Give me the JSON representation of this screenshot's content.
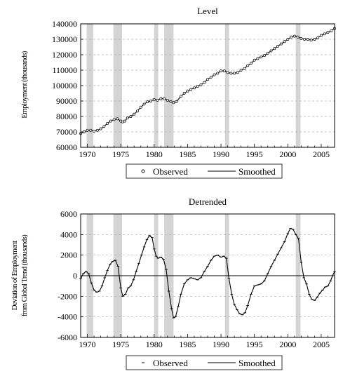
{
  "chart_data": [
    {
      "type": "line",
      "title": "Level",
      "ylabel": "Employment (thousands)",
      "xlim": [
        1969,
        2007
      ],
      "ylim": [
        60000,
        140000
      ],
      "y_ticks": [
        "60000",
        "70000",
        "80000",
        "90000",
        "100000",
        "110000",
        "120000",
        "130000",
        "140000"
      ],
      "x_ticks": [
        "1970",
        "1975",
        "1980",
        "1985",
        "1990",
        "1995",
        "2000",
        "2005"
      ],
      "grid": "horizontal dashed",
      "legend_position": "bottom",
      "recessions": [
        [
          1969.9,
          1970.9
        ],
        [
          1973.9,
          1975.2
        ],
        [
          1980.0,
          1980.6
        ],
        [
          1981.5,
          1982.9
        ],
        [
          1990.6,
          1991.2
        ],
        [
          2001.2,
          2001.9
        ]
      ],
      "series": [
        {
          "name": "Observed",
          "marker": "circle",
          "x": [
            1969.0,
            1969.5,
            1970.0,
            1970.5,
            1971.0,
            1971.5,
            1972.0,
            1972.5,
            1973.0,
            1973.5,
            1974.0,
            1974.5,
            1975.0,
            1975.3,
            1975.6,
            1976.0,
            1976.5,
            1977.0,
            1977.5,
            1978.0,
            1978.5,
            1979.0,
            1979.5,
            1980.0,
            1980.5,
            1981.0,
            1981.5,
            1982.0,
            1982.5,
            1982.9,
            1983.3,
            1984.0,
            1984.5,
            1985.0,
            1985.5,
            1986.0,
            1986.5,
            1987.0,
            1987.5,
            1988.0,
            1988.5,
            1989.0,
            1989.5,
            1990.0,
            1990.5,
            1991.0,
            1991.5,
            1992.0,
            1992.5,
            1993.0,
            1993.5,
            1994.0,
            1994.5,
            1995.0,
            1995.5,
            1996.0,
            1996.5,
            1997.0,
            1997.5,
            1998.0,
            1998.5,
            1999.0,
            1999.5,
            2000.0,
            2000.5,
            2001.0,
            2001.5,
            2002.0,
            2002.5,
            2003.0,
            2003.5,
            2004.0,
            2004.5,
            2005.0,
            2005.5,
            2006.0,
            2006.5,
            2007.0
          ],
          "y": [
            69000,
            70000,
            71000,
            71000,
            70500,
            71000,
            72000,
            73500,
            75500,
            77000,
            78000,
            78500,
            77000,
            76500,
            77000,
            79000,
            80000,
            81500,
            83500,
            86000,
            88000,
            89500,
            90000,
            91000,
            90500,
            91500,
            91500,
            90500,
            89500,
            89000,
            89500,
            93000,
            95000,
            96500,
            97500,
            98500,
            99500,
            100500,
            102000,
            104000,
            105500,
            107000,
            108000,
            109500,
            109500,
            108500,
            108000,
            108000,
            108500,
            110000,
            111000,
            113000,
            114500,
            116500,
            117500,
            118500,
            119500,
            121000,
            122500,
            124000,
            125500,
            127000,
            128500,
            130000,
            131500,
            132000,
            131500,
            130500,
            130000,
            130000,
            129500,
            130000,
            131000,
            132500,
            133500,
            134500,
            135500,
            137000
          ]
        },
        {
          "name": "Smoothed",
          "marker": "none",
          "x": [
            1969.0,
            1969.5,
            1970.0,
            1970.5,
            1971.0,
            1971.5,
            1972.0,
            1972.5,
            1973.0,
            1973.5,
            1974.0,
            1974.5,
            1975.0,
            1975.3,
            1975.6,
            1976.0,
            1976.5,
            1977.0,
            1977.5,
            1978.0,
            1978.5,
            1979.0,
            1979.5,
            1980.0,
            1980.5,
            1981.0,
            1981.5,
            1982.0,
            1982.5,
            1982.9,
            1983.3,
            1984.0,
            1984.5,
            1985.0,
            1985.5,
            1986.0,
            1986.5,
            1987.0,
            1987.5,
            1988.0,
            1988.5,
            1989.0,
            1989.5,
            1990.0,
            1990.5,
            1991.0,
            1991.5,
            1992.0,
            1992.5,
            1993.0,
            1993.5,
            1994.0,
            1994.5,
            1995.0,
            1995.5,
            1996.0,
            1996.5,
            1997.0,
            1997.5,
            1998.0,
            1998.5,
            1999.0,
            1999.5,
            2000.0,
            2000.5,
            2001.0,
            2001.5,
            2002.0,
            2002.5,
            2003.0,
            2003.5,
            2004.0,
            2004.5,
            2005.0,
            2005.5,
            2006.0,
            2006.5,
            2007.0
          ],
          "y": [
            69000,
            70000,
            71000,
            71000,
            70500,
            71000,
            72000,
            73500,
            75500,
            77000,
            78000,
            78500,
            77000,
            76500,
            77000,
            79000,
            80000,
            81500,
            83500,
            86000,
            88000,
            89500,
            90000,
            91000,
            90500,
            91500,
            91500,
            90500,
            89500,
            89000,
            89500,
            93000,
            95000,
            96500,
            97500,
            98500,
            99500,
            100500,
            102000,
            104000,
            105500,
            107000,
            108000,
            109500,
            109500,
            108500,
            108000,
            108000,
            108500,
            110000,
            111000,
            113000,
            114500,
            116500,
            117500,
            118500,
            119500,
            121000,
            122500,
            124000,
            125500,
            127000,
            128500,
            130000,
            131500,
            132000,
            131500,
            130500,
            130000,
            130000,
            129500,
            130000,
            131000,
            132500,
            133500,
            134500,
            135500,
            137000
          ]
        }
      ]
    },
    {
      "type": "line",
      "title": "Detrended",
      "ylabel": "Deviation of Employment from Global Trend (thousands)",
      "xlim": [
        1969,
        2007
      ],
      "ylim": [
        -6000,
        6000
      ],
      "y_ticks": [
        "-6000",
        "-4000",
        "-2000",
        "0",
        "2000",
        "4000",
        "6000"
      ],
      "x_ticks": [
        "1970",
        "1975",
        "1980",
        "1985",
        "1990",
        "1995",
        "2000",
        "2005"
      ],
      "grid": "horizontal dashed",
      "zero_line": true,
      "legend_position": "bottom",
      "recessions": [
        [
          1969.9,
          1970.9
        ],
        [
          1973.9,
          1975.2
        ],
        [
          1980.0,
          1980.6
        ],
        [
          1981.5,
          1982.9
        ],
        [
          1990.6,
          1991.2
        ],
        [
          2001.2,
          2001.9
        ]
      ],
      "series": [
        {
          "name": "Observed",
          "marker": "dash",
          "x": [
            1969.0,
            1969.4,
            1969.8,
            1970.2,
            1970.6,
            1971.0,
            1971.4,
            1971.8,
            1972.2,
            1972.6,
            1973.0,
            1973.4,
            1973.8,
            1974.2,
            1974.6,
            1975.0,
            1975.3,
            1975.7,
            1976.1,
            1976.5,
            1976.9,
            1977.3,
            1977.7,
            1978.1,
            1978.5,
            1978.9,
            1979.3,
            1979.7,
            1980.0,
            1980.3,
            1980.6,
            1981.0,
            1981.4,
            1981.8,
            1982.2,
            1982.6,
            1982.9,
            1983.2,
            1983.6,
            1984.0,
            1984.5,
            1985.0,
            1985.5,
            1986.0,
            1986.5,
            1987.0,
            1987.5,
            1988.0,
            1988.5,
            1989.0,
            1989.5,
            1990.0,
            1990.4,
            1990.8,
            1991.2,
            1991.6,
            1992.0,
            1992.4,
            1992.8,
            1993.2,
            1993.6,
            1994.0,
            1994.5,
            1995.0,
            1995.5,
            1996.0,
            1996.5,
            1997.0,
            1997.5,
            1998.0,
            1998.5,
            1999.0,
            1999.5,
            2000.0,
            2000.4,
            2000.8,
            2001.2,
            2001.6,
            2002.0,
            2002.4,
            2002.8,
            2003.2,
            2003.6,
            2004.0,
            2004.4,
            2004.8,
            2005.2,
            2005.6,
            2006.0,
            2006.4,
            2006.7,
            2007.0
          ],
          "y": [
            -300,
            200,
            400,
            200,
            -700,
            -1400,
            -1600,
            -1500,
            -1000,
            -200,
            500,
            1100,
            1400,
            1500,
            900,
            -1200,
            -2000,
            -1800,
            -1200,
            -1000,
            -400,
            400,
            1200,
            2000,
            2800,
            3500,
            3900,
            3700,
            2600,
            1900,
            1700,
            1800,
            1600,
            600,
            -1500,
            -3200,
            -4100,
            -4000,
            -3000,
            -1800,
            -800,
            -400,
            -200,
            -300,
            -400,
            -200,
            400,
            900,
            1500,
            1900,
            2000,
            1800,
            1900,
            1700,
            -300,
            -1800,
            -2800,
            -3300,
            -3700,
            -3800,
            -3600,
            -2900,
            -1800,
            -1000,
            -900,
            -800,
            -500,
            200,
            900,
            1500,
            2100,
            2700,
            3300,
            4100,
            4600,
            4500,
            4000,
            3600,
            1300,
            -200,
            -800,
            -1800,
            -2300,
            -2400,
            -2100,
            -1700,
            -1400,
            -1100,
            -1000,
            -500,
            0,
            400
          ]
        },
        {
          "name": "Smoothed",
          "marker": "none",
          "x": [
            1969.0,
            1969.4,
            1969.8,
            1970.2,
            1970.6,
            1971.0,
            1971.4,
            1971.8,
            1972.2,
            1972.6,
            1973.0,
            1973.4,
            1973.8,
            1974.2,
            1974.6,
            1975.0,
            1975.3,
            1975.7,
            1976.1,
            1976.5,
            1976.9,
            1977.3,
            1977.7,
            1978.1,
            1978.5,
            1978.9,
            1979.3,
            1979.7,
            1980.0,
            1980.3,
            1980.6,
            1981.0,
            1981.4,
            1981.8,
            1982.2,
            1982.6,
            1982.9,
            1983.2,
            1983.6,
            1984.0,
            1984.5,
            1985.0,
            1985.5,
            1986.0,
            1986.5,
            1987.0,
            1987.5,
            1988.0,
            1988.5,
            1989.0,
            1989.5,
            1990.0,
            1990.4,
            1990.8,
            1991.2,
            1991.6,
            1992.0,
            1992.4,
            1992.8,
            1993.2,
            1993.6,
            1994.0,
            1994.5,
            1995.0,
            1995.5,
            1996.0,
            1996.5,
            1997.0,
            1997.5,
            1998.0,
            1998.5,
            1999.0,
            1999.5,
            2000.0,
            2000.4,
            2000.8,
            2001.2,
            2001.6,
            2002.0,
            2002.4,
            2002.8,
            2003.2,
            2003.6,
            2004.0,
            2004.4,
            2004.8,
            2005.2,
            2005.6,
            2006.0,
            2006.4,
            2006.7,
            2007.0
          ],
          "y": [
            -300,
            200,
            400,
            200,
            -700,
            -1400,
            -1600,
            -1500,
            -1000,
            -200,
            500,
            1100,
            1400,
            1500,
            900,
            -1200,
            -2000,
            -1800,
            -1200,
            -1000,
            -400,
            400,
            1200,
            2000,
            2800,
            3500,
            3900,
            3700,
            2600,
            1900,
            1700,
            1800,
            1600,
            600,
            -1500,
            -3200,
            -4100,
            -4000,
            -3000,
            -1800,
            -800,
            -400,
            -200,
            -300,
            -400,
            -200,
            400,
            900,
            1500,
            1900,
            2000,
            1800,
            1900,
            1700,
            -300,
            -1800,
            -2800,
            -3300,
            -3700,
            -3800,
            -3600,
            -2900,
            -1800,
            -1000,
            -900,
            -800,
            -500,
            200,
            900,
            1500,
            2100,
            2700,
            3300,
            4100,
            4600,
            4500,
            4000,
            3600,
            1300,
            -200,
            -800,
            -1800,
            -2300,
            -2400,
            -2100,
            -1700,
            -1400,
            -1100,
            -1000,
            -500,
            0,
            400
          ]
        }
      ]
    }
  ],
  "colors": {
    "recession": "#d4d4d4",
    "grid": "#b0b0b0",
    "line": "#000000"
  }
}
